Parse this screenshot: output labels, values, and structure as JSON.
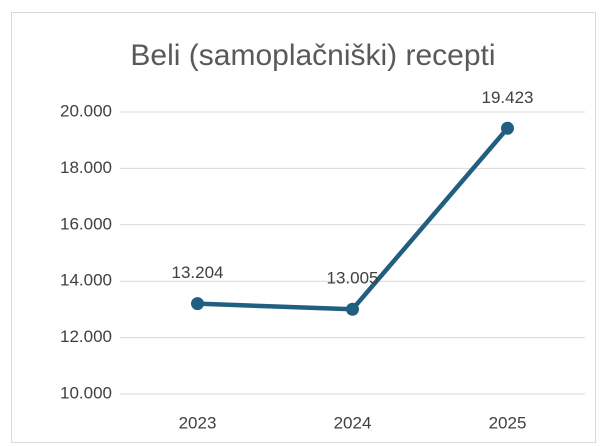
{
  "chart_data": {
    "type": "line",
    "title": "Beli (samoplačniški) recepti",
    "categories": [
      "2023",
      "2024",
      "2025"
    ],
    "values": [
      13204,
      13005,
      19423
    ],
    "value_labels": [
      "13.204",
      "13.005",
      "19.423"
    ],
    "color": "#215f80",
    "ylim": [
      10000,
      20000
    ],
    "yticks": [
      {
        "value": 10000,
        "label": "10.000"
      },
      {
        "value": 12000,
        "label": "12.000"
      },
      {
        "value": 14000,
        "label": "14.000"
      },
      {
        "value": 16000,
        "label": "16.000"
      },
      {
        "value": 18000,
        "label": "18.000"
      },
      {
        "value": 20000,
        "label": "20.000"
      }
    ],
    "grid": true
  }
}
